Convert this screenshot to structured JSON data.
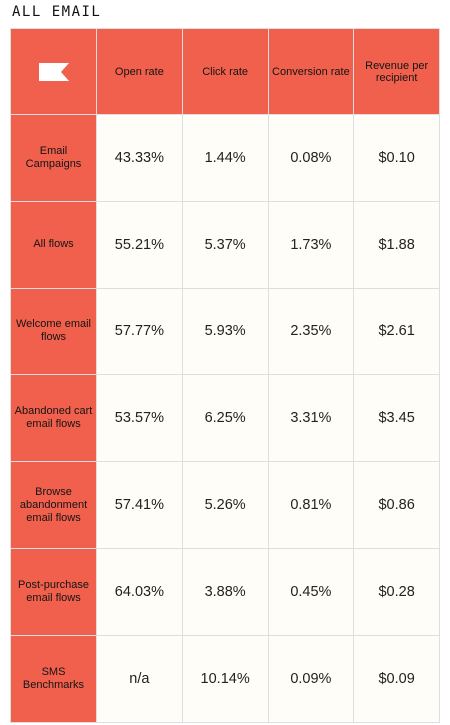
{
  "section_title": "ALL EMAIL",
  "chart_data": {
    "type": "table",
    "columns": [
      "Open rate",
      "Click rate",
      "Conversion rate",
      "Revenue per recipient"
    ],
    "rows": [
      {
        "label": "Email Campaigns",
        "values": [
          "43.33%",
          "1.44%",
          "0.08%",
          "$0.10"
        ]
      },
      {
        "label": "All flows",
        "values": [
          "55.21%",
          "5.37%",
          "1.73%",
          "$1.88"
        ]
      },
      {
        "label": "Welcome email flows",
        "values": [
          "57.77%",
          "5.93%",
          "2.35%",
          "$2.61"
        ]
      },
      {
        "label": "Abandoned cart email flows",
        "values": [
          "53.57%",
          "6.25%",
          "3.31%",
          "$3.45"
        ]
      },
      {
        "label": "Browse abandonment email flows",
        "values": [
          "57.41%",
          "5.26%",
          "0.81%",
          "$0.86"
        ]
      },
      {
        "label": "Post-purchase email flows",
        "values": [
          "64.03%",
          "3.88%",
          "0.45%",
          "$0.28"
        ]
      },
      {
        "label": "SMS Benchmarks",
        "values": [
          "n/a",
          "10.14%",
          "0.09%",
          "$0.09"
        ]
      }
    ]
  },
  "colors": {
    "header_bg": "#f0604d",
    "cell_bg": "#fffdf7",
    "logo": "#ffffff"
  },
  "icons": {
    "logo": "flag-logo-icon"
  }
}
